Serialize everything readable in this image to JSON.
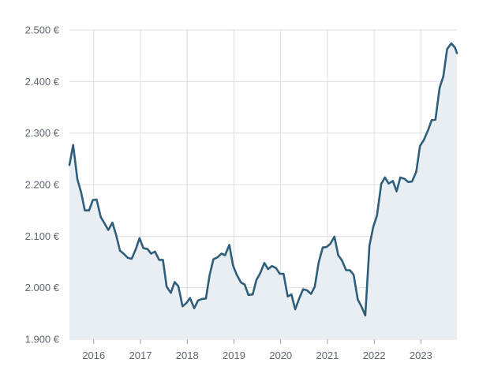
{
  "chart_data": {
    "type": "area",
    "title": "",
    "xlabel": "",
    "ylabel": "",
    "x_ticks": [
      "2016",
      "2017",
      "2018",
      "2019",
      "2020",
      "2021",
      "2022",
      "2023"
    ],
    "y_ticks": [
      "1.900 €",
      "2.000 €",
      "2.100 €",
      "2.200 €",
      "2.300 €",
      "2.400 €",
      "2.500 €"
    ],
    "y_tick_values": [
      1900,
      2000,
      2100,
      2200,
      2300,
      2400,
      2500
    ],
    "ylim": [
      1900,
      2500
    ],
    "xlim": [
      2015.48,
      2023.77
    ],
    "grid": true,
    "legend": "none",
    "colors": {
      "line": "#2e5e7a",
      "fill": "#e9eef3",
      "grid": "#dcdfe3",
      "text": "#5f6670"
    },
    "series": [
      {
        "x": [
          2015.48,
          2015.56,
          2015.65,
          2015.73,
          2015.81,
          2015.9,
          2015.98,
          2016.06,
          2016.15,
          2016.23,
          2016.31,
          2016.4,
          2016.48,
          2016.56,
          2016.65,
          2016.73,
          2016.81,
          2016.9,
          2016.98,
          2017.06,
          2017.15,
          2017.23,
          2017.31,
          2017.4,
          2017.48,
          2017.56,
          2017.65,
          2017.73,
          2017.81,
          2017.9,
          2017.98,
          2018.06,
          2018.15,
          2018.23,
          2018.31,
          2018.4,
          2018.48,
          2018.56,
          2018.65,
          2018.73,
          2018.81,
          2018.9,
          2018.98,
          2019.06,
          2019.15,
          2019.23,
          2019.31,
          2019.4,
          2019.48,
          2019.56,
          2019.65,
          2019.73,
          2019.81,
          2019.9,
          2019.98,
          2020.06,
          2020.15,
          2020.23,
          2020.31,
          2020.4,
          2020.48,
          2020.56,
          2020.65,
          2020.73,
          2020.81,
          2020.9,
          2020.98,
          2021.06,
          2021.15,
          2021.23,
          2021.31,
          2021.4,
          2021.48,
          2021.56,
          2021.65,
          2021.73,
          2021.81,
          2021.9,
          2021.98,
          2022.06,
          2022.15,
          2022.23,
          2022.31,
          2022.4,
          2022.48,
          2022.56,
          2022.65,
          2022.73,
          2022.81,
          2022.9,
          2022.98,
          2023.06,
          2023.15,
          2023.23,
          2023.31,
          2023.4,
          2023.48,
          2023.56,
          2023.65,
          2023.73,
          2023.77
        ],
        "values": [
          2238,
          2277,
          2210,
          2185,
          2150,
          2150,
          2170,
          2171,
          2137,
          2125,
          2112,
          2126,
          2102,
          2072,
          2065,
          2058,
          2056,
          2075,
          2096,
          2077,
          2075,
          2066,
          2070,
          2054,
          2054,
          2002,
          1990,
          2011,
          2003,
          1964,
          1970,
          1980,
          1960,
          1975,
          1978,
          1979,
          2025,
          2055,
          2059,
          2066,
          2063,
          2083,
          2043,
          2025,
          2010,
          2006,
          1986,
          1987,
          2015,
          2028,
          2048,
          2036,
          2042,
          2038,
          2027,
          2027,
          1983,
          1987,
          1958,
          1980,
          1997,
          1995,
          1988,
          2002,
          2048,
          2078,
          2079,
          2085,
          2099,
          2063,
          2053,
          2034,
          2034,
          2025,
          1977,
          1963,
          1946,
          2082,
          2118,
          2140,
          2201,
          2214,
          2202,
          2207,
          2187,
          2214,
          2211,
          2205,
          2206,
          2225,
          2275,
          2286,
          2305,
          2325,
          2326,
          2388,
          2410,
          2463,
          2474,
          2466,
          2455
        ]
      }
    ]
  }
}
